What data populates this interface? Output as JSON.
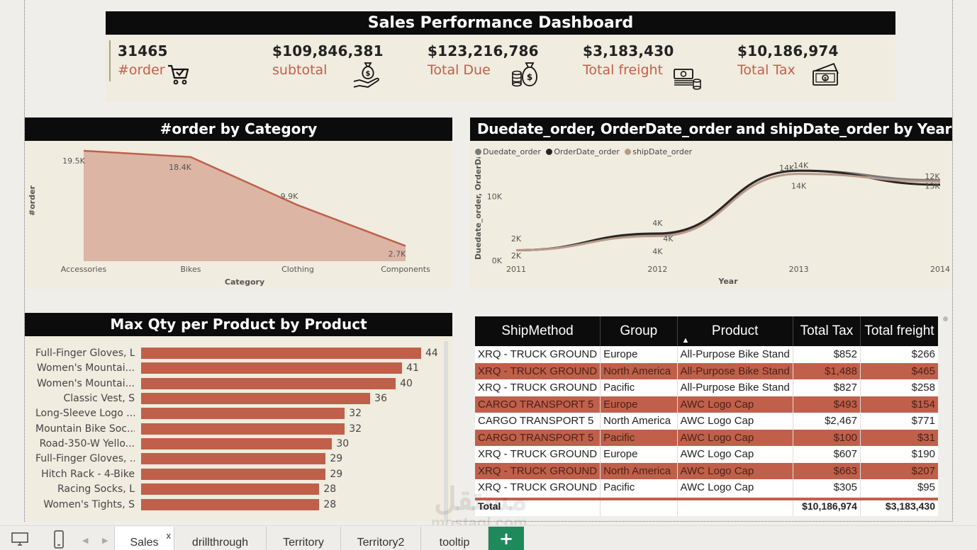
{
  "dashboard": {
    "title": "Sales Performance Dashboard"
  },
  "kpis": [
    {
      "value": "31465",
      "label": "#order",
      "icon": "cart-check-icon"
    },
    {
      "value": "$109,846,381",
      "label": "subtotal",
      "icon": "money-bag-hand-icon"
    },
    {
      "value": "$123,216,786",
      "label": "Total Due",
      "icon": "money-bag-coins-icon"
    },
    {
      "value": "$3,183,430",
      "label": "Total freight",
      "icon": "cash-stack-icon"
    },
    {
      "value": "$10,186,974",
      "label": "Total Tax",
      "icon": "banknotes-icon"
    }
  ],
  "colors": {
    "accent": "#c0604a",
    "header": "#0c0c0c",
    "panel": "#f0ecdf",
    "area_fill": "#dcb5a5"
  },
  "chart_data": [
    {
      "type": "area",
      "title": "#order by Category",
      "xlabel": "Category",
      "ylabel": "#order",
      "categories": [
        "Accessories",
        "Bikes",
        "Clothing",
        "Components"
      ],
      "values": [
        19500,
        18400,
        9900,
        2700
      ],
      "data_labels": [
        "19.5K",
        "18.4K",
        "9.9K",
        "2.7K"
      ]
    },
    {
      "type": "line",
      "title": "Duedate_order, OrderDate_order and shipDate_order by Year",
      "xlabel": "Year",
      "ylabel": "Duedate_order, OrderDat...",
      "x": [
        2011,
        2012,
        2013,
        2014
      ],
      "yticks": [
        "0K",
        "10K"
      ],
      "ylim": [
        0,
        15000
      ],
      "series": [
        {
          "name": "Duedate_order",
          "color": "#7a7a7a",
          "values": [
            1600,
            4000,
            14000,
            12500
          ]
        },
        {
          "name": "OrderDate_order",
          "color": "#2a2422",
          "values": [
            1600,
            4200,
            14000,
            11800
          ]
        },
        {
          "name": "shipDate_order",
          "color": "#b79a8a",
          "values": [
            1600,
            3800,
            13500,
            12300
          ]
        }
      ],
      "data_labels": [
        {
          "text": "2K"
        },
        {
          "text": "2K"
        },
        {
          "text": "4K"
        },
        {
          "text": "4K"
        },
        {
          "text": "4K"
        },
        {
          "text": "14K"
        },
        {
          "text": "14K"
        },
        {
          "text": "14K"
        },
        {
          "text": "12K"
        },
        {
          "text": "13K"
        }
      ]
    },
    {
      "type": "bar",
      "title": "Max Qty per Product by Product",
      "categories": [
        "Full-Finger Gloves, L",
        "Women's Mountai...",
        "Women's Mountai...",
        "Classic Vest, S",
        "Long-Sleeve Logo ...",
        "Mountain Bike Soc...",
        "Road-350-W Yello...",
        "Full-Finger Gloves, ...",
        "Hitch Rack - 4-Bike",
        "Racing Socks, L",
        "Women's Tights, S"
      ],
      "values": [
        44,
        41,
        40,
        36,
        32,
        32,
        30,
        29,
        29,
        28,
        28
      ]
    }
  ],
  "table": {
    "headers": [
      "ShipMethod",
      "Group",
      "Product",
      "Total Tax",
      "Total freight"
    ],
    "sort_column": "Product",
    "rows": [
      [
        "XRQ - TRUCK GROUND",
        "Europe",
        "All-Purpose Bike Stand",
        "$852",
        "$266"
      ],
      [
        "XRQ - TRUCK GROUND",
        "North America",
        "All-Purpose Bike Stand",
        "$1,488",
        "$465"
      ],
      [
        "XRQ - TRUCK GROUND",
        "Pacific",
        "All-Purpose Bike Stand",
        "$827",
        "$258"
      ],
      [
        "CARGO TRANSPORT 5",
        "Europe",
        "AWC Logo Cap",
        "$493",
        "$154"
      ],
      [
        "CARGO TRANSPORT 5",
        "North America",
        "AWC Logo Cap",
        "$2,467",
        "$771"
      ],
      [
        "CARGO TRANSPORT 5",
        "Pacific",
        "AWC Logo Cap",
        "$100",
        "$31"
      ],
      [
        "XRQ - TRUCK GROUND",
        "Europe",
        "AWC Logo Cap",
        "$607",
        "$190"
      ],
      [
        "XRQ - TRUCK GROUND",
        "North America",
        "AWC Logo Cap",
        "$663",
        "$207"
      ],
      [
        "XRQ - TRUCK GROUND",
        "Pacific",
        "AWC Logo Cap",
        "$305",
        "$95"
      ]
    ],
    "total": {
      "label": "Total",
      "tax": "$10,186,974",
      "freight": "$3,183,430"
    }
  },
  "tabs": [
    {
      "label": "Sales",
      "active": true,
      "close": "x"
    },
    {
      "label": "drillthrough"
    },
    {
      "label": "Territory"
    },
    {
      "label": "Territory2"
    },
    {
      "label": "tooltip"
    }
  ],
  "add_tab": "+",
  "watermark": {
    "arabic": "مستقل",
    "latin": "mostaql.com"
  }
}
